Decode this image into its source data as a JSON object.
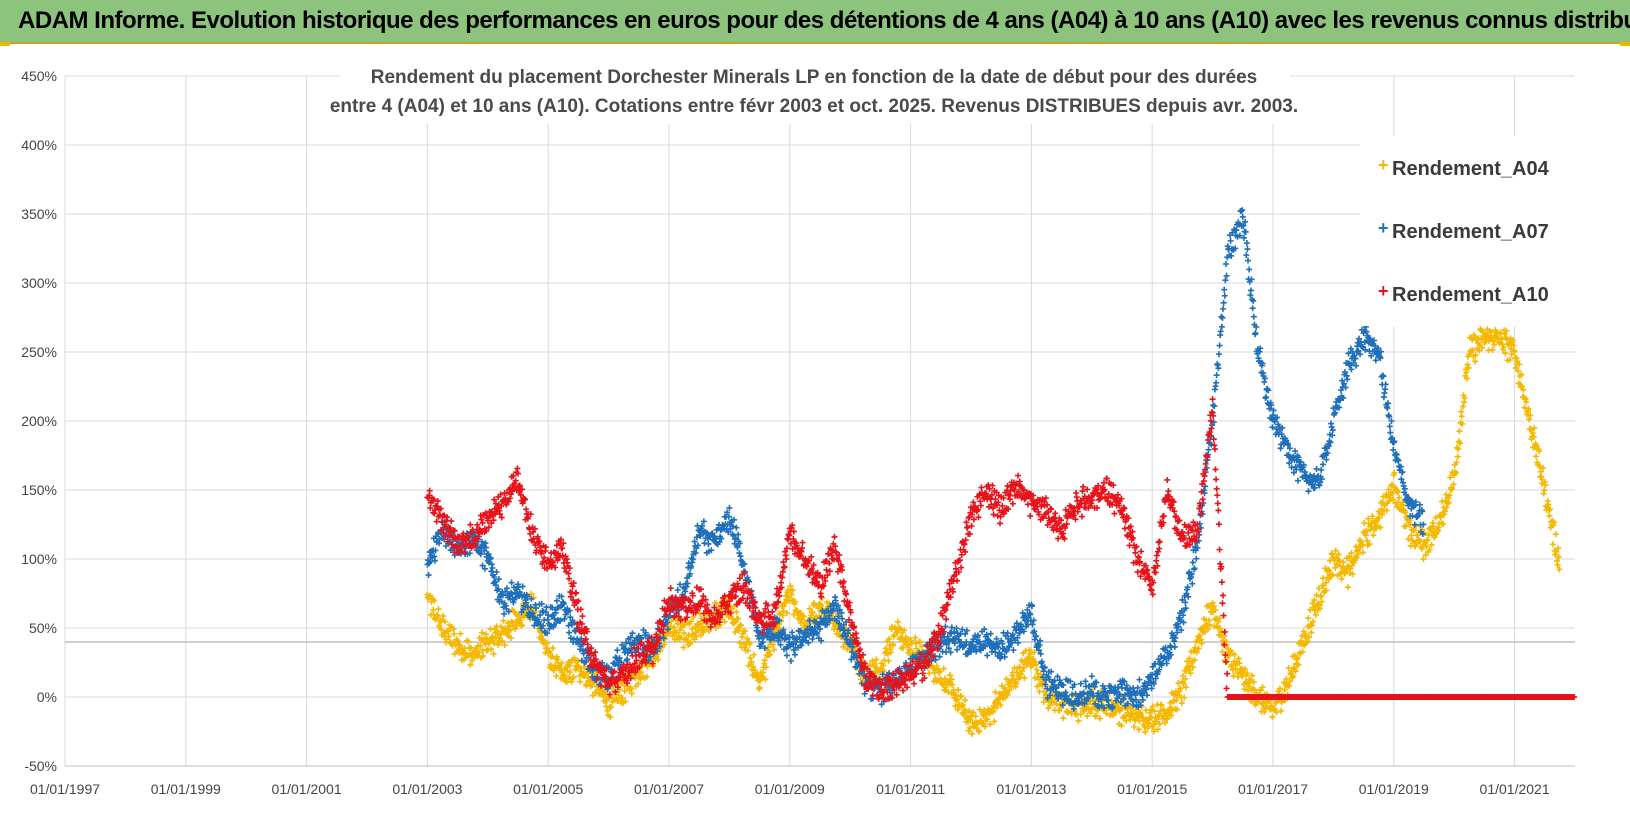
{
  "banner": {
    "title": "ADAM Informe. Evolution historique des performances en euros pour des détentions de 4 ans (A04) à 10 ans (A10) avec les revenus connus distribués"
  },
  "colors": {
    "A04": "#f5b800",
    "A07": "#1f6fba",
    "A10": "#e8121a",
    "grid": "#d9d9d9",
    "banner": "#8cc47d"
  },
  "chart_data": {
    "type": "scatter",
    "title_line1": "Rendement du placement Dorchester Minerals LP en fonction de la date de début pour des durées",
    "title_line2": "entre 4 (A04) et 10 ans (A10). Cotations entre févr 2003 et oct. 2025. Revenus DISTRIBUES depuis avr. 2003.",
    "xlim": [
      1997.0,
      2022.0
    ],
    "ylim": [
      -50,
      450
    ],
    "y_ticks": [
      -50,
      0,
      50,
      100,
      150,
      200,
      250,
      300,
      350,
      400,
      450
    ],
    "y_tick_labels": [
      "-50%",
      "0%",
      "50%",
      "100%",
      "150%",
      "200%",
      "250%",
      "300%",
      "350%",
      "400%",
      "450%"
    ],
    "x_ticks": [
      1997,
      1999,
      2001,
      2003,
      2005,
      2007,
      2009,
      2011,
      2013,
      2015,
      2017,
      2019,
      2021
    ],
    "x_tick_labels": [
      "01/01/1997",
      "01/01/1999",
      "01/01/2001",
      "01/01/2003",
      "01/01/2005",
      "01/01/2007",
      "01/01/2009",
      "01/01/2011",
      "01/01/2013",
      "01/01/2015",
      "01/01/2017",
      "01/01/2019",
      "01/01/2021"
    ],
    "legend": {
      "position": "top-right",
      "entries": [
        "Rendement_A04",
        "Rendement_A07",
        "Rendement_A10"
      ]
    },
    "series": [
      {
        "name": "Rendement_A04",
        "points": [
          [
            2003.0,
            72
          ],
          [
            2003.25,
            50
          ],
          [
            2003.5,
            38
          ],
          [
            2003.75,
            30
          ],
          [
            2004.0,
            40
          ],
          [
            2004.25,
            45
          ],
          [
            2004.5,
            58
          ],
          [
            2004.75,
            65
          ],
          [
            2005.0,
            30
          ],
          [
            2005.25,
            15
          ],
          [
            2005.5,
            22
          ],
          [
            2005.75,
            10
          ],
          [
            2006.0,
            -5
          ],
          [
            2006.25,
            5
          ],
          [
            2006.5,
            20
          ],
          [
            2006.75,
            30
          ],
          [
            2007.0,
            50
          ],
          [
            2007.25,
            45
          ],
          [
            2007.5,
            50
          ],
          [
            2007.75,
            60
          ],
          [
            2008.0,
            65
          ],
          [
            2008.25,
            40
          ],
          [
            2008.5,
            10
          ],
          [
            2008.75,
            45
          ],
          [
            2009.0,
            75
          ],
          [
            2009.25,
            50
          ],
          [
            2009.5,
            65
          ],
          [
            2009.75,
            55
          ],
          [
            2010.0,
            40
          ],
          [
            2010.25,
            15
          ],
          [
            2010.5,
            20
          ],
          [
            2010.75,
            50
          ],
          [
            2011.0,
            35
          ],
          [
            2011.25,
            30
          ],
          [
            2011.5,
            15
          ],
          [
            2011.75,
            0
          ],
          [
            2012.0,
            -20
          ],
          [
            2012.25,
            -15
          ],
          [
            2012.5,
            0
          ],
          [
            2012.75,
            15
          ],
          [
            2013.0,
            30
          ],
          [
            2013.25,
            0
          ],
          [
            2013.5,
            -5
          ],
          [
            2013.75,
            -8
          ],
          [
            2014.0,
            -5
          ],
          [
            2014.25,
            -5
          ],
          [
            2014.5,
            -10
          ],
          [
            2014.75,
            -15
          ],
          [
            2015.0,
            -15
          ],
          [
            2015.25,
            -10
          ],
          [
            2015.5,
            5
          ],
          [
            2015.75,
            40
          ],
          [
            2016.0,
            65
          ],
          [
            2016.25,
            30
          ],
          [
            2016.5,
            15
          ],
          [
            2016.75,
            0
          ],
          [
            2017.0,
            -10
          ],
          [
            2017.25,
            10
          ],
          [
            2017.5,
            40
          ],
          [
            2017.75,
            70
          ],
          [
            2018.0,
            100
          ],
          [
            2018.25,
            90
          ],
          [
            2018.5,
            115
          ],
          [
            2018.75,
            130
          ],
          [
            2019.0,
            155
          ],
          [
            2019.25,
            120
          ],
          [
            2019.5,
            110
          ],
          [
            2019.75,
            125
          ],
          [
            2020.0,
            160
          ],
          [
            2020.25,
            250
          ],
          [
            2020.5,
            260
          ],
          [
            2020.75,
            260
          ],
          [
            2021.0,
            250
          ],
          [
            2021.25,
            200
          ],
          [
            2021.5,
            150
          ],
          [
            2021.75,
            95
          ]
        ]
      },
      {
        "name": "Rendement_A07",
        "points": [
          [
            2003.0,
            95
          ],
          [
            2003.25,
            120
          ],
          [
            2003.5,
            110
          ],
          [
            2003.75,
            115
          ],
          [
            2004.0,
            100
          ],
          [
            2004.25,
            70
          ],
          [
            2004.5,
            75
          ],
          [
            2004.75,
            60
          ],
          [
            2005.0,
            55
          ],
          [
            2005.25,
            65
          ],
          [
            2005.5,
            40
          ],
          [
            2005.75,
            20
          ],
          [
            2006.0,
            15
          ],
          [
            2006.25,
            30
          ],
          [
            2006.5,
            40
          ],
          [
            2006.75,
            35
          ],
          [
            2007.0,
            60
          ],
          [
            2007.25,
            75
          ],
          [
            2007.5,
            120
          ],
          [
            2007.75,
            110
          ],
          [
            2008.0,
            130
          ],
          [
            2008.25,
            95
          ],
          [
            2008.5,
            40
          ],
          [
            2008.75,
            50
          ],
          [
            2009.0,
            35
          ],
          [
            2009.25,
            45
          ],
          [
            2009.5,
            50
          ],
          [
            2009.75,
            65
          ],
          [
            2010.0,
            40
          ],
          [
            2010.25,
            10
          ],
          [
            2010.5,
            5
          ],
          [
            2010.75,
            10
          ],
          [
            2011.0,
            20
          ],
          [
            2011.25,
            30
          ],
          [
            2011.5,
            40
          ],
          [
            2011.75,
            45
          ],
          [
            2012.0,
            35
          ],
          [
            2012.25,
            40
          ],
          [
            2012.5,
            35
          ],
          [
            2012.75,
            45
          ],
          [
            2013.0,
            60
          ],
          [
            2013.25,
            10
          ],
          [
            2013.5,
            5
          ],
          [
            2013.75,
            0
          ],
          [
            2014.0,
            5
          ],
          [
            2014.25,
            -2
          ],
          [
            2014.5,
            5
          ],
          [
            2014.75,
            0
          ],
          [
            2015.0,
            15
          ],
          [
            2015.25,
            30
          ],
          [
            2015.5,
            60
          ],
          [
            2015.75,
            110
          ],
          [
            2016.0,
            200
          ],
          [
            2016.25,
            320
          ],
          [
            2016.5,
            350
          ],
          [
            2016.75,
            250
          ],
          [
            2017.0,
            200
          ],
          [
            2017.25,
            180
          ],
          [
            2017.5,
            160
          ],
          [
            2017.75,
            155
          ],
          [
            2018.0,
            200
          ],
          [
            2018.25,
            240
          ],
          [
            2018.5,
            260
          ],
          [
            2018.75,
            250
          ],
          [
            2019.0,
            180
          ],
          [
            2019.25,
            140
          ],
          [
            2019.5,
            125
          ]
        ]
      },
      {
        "name": "Rendement_A10",
        "points": [
          [
            2003.0,
            145
          ],
          [
            2003.25,
            130
          ],
          [
            2003.5,
            110
          ],
          [
            2003.75,
            115
          ],
          [
            2004.0,
            130
          ],
          [
            2004.25,
            140
          ],
          [
            2004.5,
            160
          ],
          [
            2004.75,
            115
          ],
          [
            2005.0,
            100
          ],
          [
            2005.25,
            105
          ],
          [
            2005.5,
            60
          ],
          [
            2005.75,
            25
          ],
          [
            2006.0,
            10
          ],
          [
            2006.25,
            15
          ],
          [
            2006.5,
            30
          ],
          [
            2006.75,
            35
          ],
          [
            2007.0,
            70
          ],
          [
            2007.25,
            65
          ],
          [
            2007.5,
            70
          ],
          [
            2007.75,
            55
          ],
          [
            2008.0,
            70
          ],
          [
            2008.25,
            80
          ],
          [
            2008.5,
            55
          ],
          [
            2008.75,
            60
          ],
          [
            2009.0,
            120
          ],
          [
            2009.25,
            100
          ],
          [
            2009.5,
            80
          ],
          [
            2009.75,
            110
          ],
          [
            2010.0,
            60
          ],
          [
            2010.25,
            15
          ],
          [
            2010.5,
            5
          ],
          [
            2010.75,
            10
          ],
          [
            2011.0,
            15
          ],
          [
            2011.25,
            25
          ],
          [
            2011.5,
            50
          ],
          [
            2011.75,
            90
          ],
          [
            2012.0,
            130
          ],
          [
            2012.25,
            150
          ],
          [
            2012.5,
            135
          ],
          [
            2012.75,
            155
          ],
          [
            2013.0,
            140
          ],
          [
            2013.25,
            135
          ],
          [
            2013.5,
            120
          ],
          [
            2013.75,
            140
          ],
          [
            2014.0,
            145
          ],
          [
            2014.25,
            150
          ],
          [
            2014.5,
            135
          ],
          [
            2014.75,
            100
          ],
          [
            2015.0,
            80
          ],
          [
            2015.25,
            150
          ],
          [
            2015.5,
            115
          ],
          [
            2015.75,
            120
          ],
          [
            2016.0,
            210
          ],
          [
            2016.25,
            0
          ],
          [
            2017.0,
            0
          ],
          [
            2018.0,
            0
          ],
          [
            2019.0,
            0
          ],
          [
            2020.0,
            0
          ],
          [
            2021.0,
            0
          ],
          [
            2022.0,
            0
          ]
        ]
      }
    ]
  }
}
